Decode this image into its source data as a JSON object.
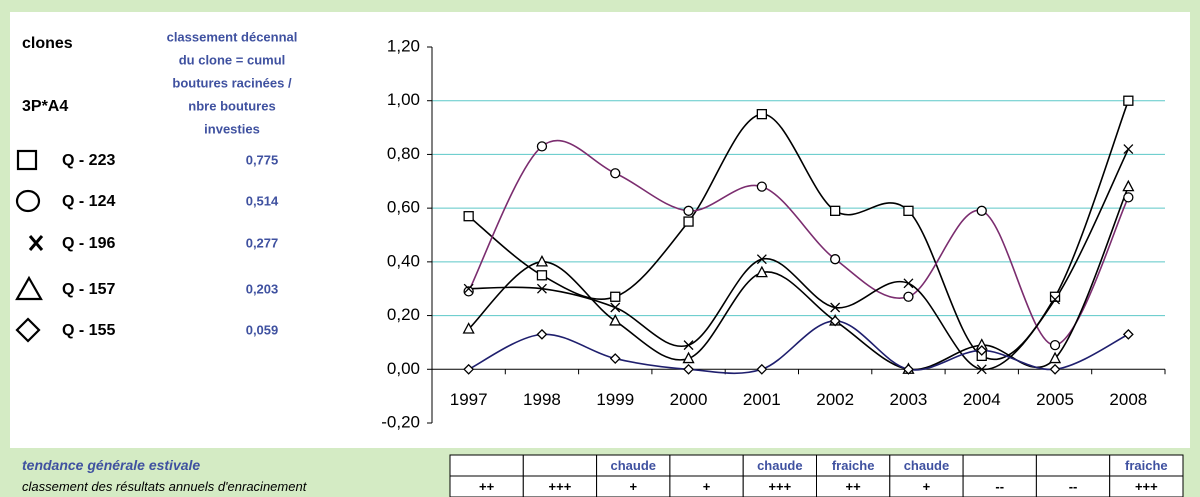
{
  "chart_data": {
    "type": "line",
    "legend_header": "clones",
    "legend_subheader": "3P*A4",
    "score_header": [
      "classement décennal",
      "du clone = cumul",
      "boutures racinées /",
      "nbre boutures",
      "investies"
    ],
    "categories": [
      "1997",
      "1998",
      "1999",
      "2000",
      "2001",
      "2002",
      "2003",
      "2004",
      "2005",
      "2008"
    ],
    "series": [
      {
        "name": "Q - 223",
        "score": "0,775",
        "marker": "square",
        "color": "#000000",
        "values": [
          0.57,
          0.35,
          0.27,
          0.55,
          0.95,
          0.59,
          0.59,
          0.05,
          0.27,
          1.0
        ]
      },
      {
        "name": "Q - 124",
        "score": "0,514",
        "marker": "circle",
        "color": "#7b2d6f",
        "values": [
          0.29,
          0.83,
          0.73,
          0.59,
          0.68,
          0.41,
          0.27,
          0.59,
          0.09,
          0.64
        ]
      },
      {
        "name": "Q - 196",
        "score": "0,277",
        "marker": "x",
        "color": "#000000",
        "values": [
          0.3,
          0.3,
          0.23,
          0.09,
          0.41,
          0.23,
          0.32,
          0.0,
          0.26,
          0.82
        ]
      },
      {
        "name": "Q - 157",
        "score": "0,203",
        "marker": "triangle",
        "color": "#000000",
        "values": [
          0.15,
          0.4,
          0.18,
          0.04,
          0.36,
          0.18,
          0.0,
          0.09,
          0.04,
          0.68
        ]
      },
      {
        "name": "Q - 155",
        "score": "0,059",
        "marker": "diamond",
        "color": "#1f1f6e",
        "values": [
          0.0,
          0.13,
          0.04,
          0.0,
          0.0,
          0.18,
          0.0,
          0.07,
          0.0,
          0.13
        ]
      }
    ],
    "ylim": [
      -0.2,
      1.2
    ],
    "yticks": [
      {
        "value": -0.2,
        "label": "-0,20"
      },
      {
        "value": 0,
        "label": "0,00"
      },
      {
        "value": 0.2,
        "label": "0,20"
      },
      {
        "value": 0.4,
        "label": "0,40"
      },
      {
        "value": 0.6,
        "label": "0,60"
      },
      {
        "value": 0.8,
        "label": "0,80"
      },
      {
        "value": 1.0,
        "label": "1,00"
      },
      {
        "value": 1.2,
        "label": "1,20"
      }
    ],
    "grid": true,
    "grid_color": "#5cc8c8",
    "table": {
      "rows": [
        {
          "label": "tendance générale estivale",
          "cells": [
            null,
            null,
            "chaude",
            null,
            "chaude",
            "fraiche",
            "chaude",
            null,
            null,
            "fraiche"
          ]
        },
        {
          "label": "classement des résultats annuels d'enracinement",
          "cells": [
            "++",
            "+++",
            "+",
            "+",
            "+++",
            "++",
            "+",
            "--",
            "--",
            "+++"
          ]
        }
      ]
    }
  }
}
